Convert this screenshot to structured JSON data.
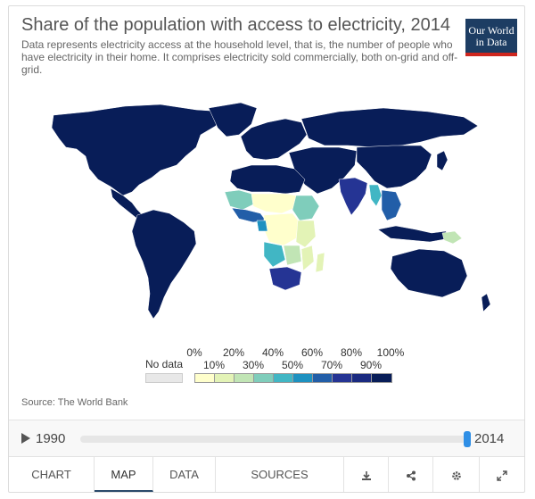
{
  "header": {
    "title": "Share of the population with access to electricity, 2014",
    "subtitle": "Data represents electricity access at the household level, that is, the number of people who have electricity in their home. It comprises electricity sold commercially, both on-grid and off-grid.",
    "logo_line1": "Our World",
    "logo_line2": "in Data"
  },
  "legend": {
    "no_data_label": "No data",
    "top_labels": [
      "0%",
      "20%",
      "40%",
      "60%",
      "80%",
      "100%"
    ],
    "bottom_labels": [
      "10%",
      "30%",
      "50%",
      "70%",
      "90%"
    ],
    "colors": [
      "#ffffcc",
      "#e3f3b6",
      "#c1e5b5",
      "#7fcdbb",
      "#41b6c4",
      "#1d91c0",
      "#225ea8",
      "#253494",
      "#1a2a80",
      "#081d58"
    ],
    "no_data_color": "#e8e8e8"
  },
  "source": "Source: The World Bank",
  "timeline": {
    "start_year": "1990",
    "end_year": "2014",
    "position": 1.0
  },
  "tabs": {
    "chart": "CHART",
    "map": "MAP",
    "data": "DATA",
    "sources": "SOURCES"
  },
  "icons": {
    "download": "download-icon",
    "share": "share-icon",
    "settings": "gear-icon",
    "expand": "expand-icon",
    "play": "play-icon"
  },
  "map": {
    "high_access_color": "#081d58",
    "ocean_color": "#ffffff"
  }
}
